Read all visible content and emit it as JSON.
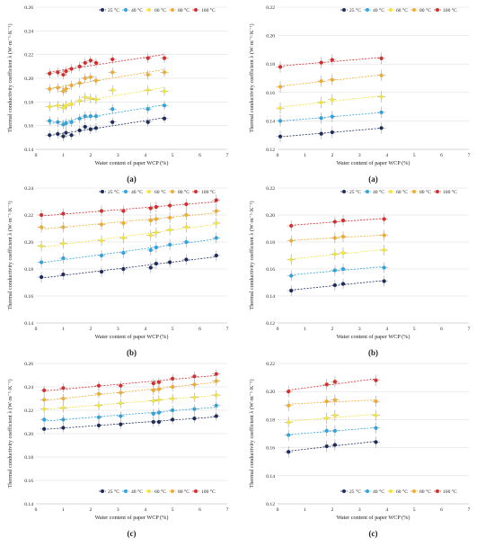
{
  "chart_data": [
    {
      "type": "scatter",
      "panel_label": "(a)",
      "xlabel": "Water content of paper WCP (%)",
      "ylabel": "Thermal conductivity coefficient λ (W·m⁻¹·K⁻¹)",
      "xlim": [
        0,
        7
      ],
      "ylim": [
        0.14,
        0.26
      ],
      "xticks": [
        "0",
        "1",
        "2",
        "3",
        "4",
        "5",
        "6",
        "7"
      ],
      "yticks": [
        "0.14",
        "0.16",
        "0.18",
        "0.20",
        "0.22",
        "0.24",
        "0.26"
      ],
      "legend_position": "top",
      "trendlines": true,
      "series": [
        {
          "name": "25 °C",
          "color": "#1f2d5c",
          "x": [
            0.5,
            0.8,
            1.0,
            1.1,
            1.3,
            1.6,
            1.8,
            2.0,
            2.2,
            2.8,
            4.1,
            4.7
          ],
          "y": [
            0.152,
            0.153,
            0.151,
            0.154,
            0.152,
            0.156,
            0.159,
            0.157,
            0.158,
            0.163,
            0.163,
            0.166
          ]
        },
        {
          "name": "40 °C",
          "color": "#2fa3dd",
          "x": [
            0.5,
            0.8,
            1.0,
            1.1,
            1.3,
            1.6,
            1.8,
            2.0,
            2.2,
            2.8,
            4.1,
            4.7
          ],
          "y": [
            0.164,
            0.163,
            0.161,
            0.162,
            0.163,
            0.166,
            0.168,
            0.168,
            0.168,
            0.174,
            0.174,
            0.177
          ]
        },
        {
          "name": "60 °C",
          "color": "#f2e33a",
          "x": [
            0.5,
            0.8,
            1.0,
            1.1,
            1.3,
            1.6,
            1.8,
            2.0,
            2.2,
            2.8,
            4.1,
            4.7
          ],
          "y": [
            0.176,
            0.177,
            0.175,
            0.177,
            0.178,
            0.181,
            0.184,
            0.183,
            0.182,
            0.19,
            0.19,
            0.189
          ]
        },
        {
          "name": "80 °C",
          "color": "#f0ad2d",
          "x": [
            0.5,
            0.8,
            1.0,
            1.1,
            1.3,
            1.6,
            1.8,
            2.0,
            2.2,
            2.8,
            4.1,
            4.7
          ],
          "y": [
            0.191,
            0.192,
            0.189,
            0.191,
            0.194,
            0.196,
            0.2,
            0.201,
            0.198,
            0.205,
            0.203,
            0.205
          ]
        },
        {
          "name": "100 °C",
          "color": "#d62d2d",
          "x": [
            0.5,
            0.8,
            1.0,
            1.1,
            1.3,
            1.6,
            1.8,
            2.0,
            2.2,
            2.8,
            4.1,
            4.7
          ],
          "y": [
            0.204,
            0.205,
            0.203,
            0.206,
            0.208,
            0.21,
            0.213,
            0.215,
            0.213,
            0.216,
            0.217,
            0.217
          ]
        }
      ]
    },
    {
      "type": "scatter",
      "panel_label": "(a)",
      "xlabel": "Water content of paper WCP (%)",
      "ylabel": "Thermal conductivity coefficient λ (W·m⁻¹·K⁻¹)",
      "xlim": [
        0,
        7
      ],
      "ylim": [
        0.12,
        0.22
      ],
      "xticks": [
        "0",
        "1",
        "2",
        "3",
        "4",
        "5",
        "6",
        "7"
      ],
      "yticks": [
        "0.12",
        "0.14",
        "0.16",
        "0.18",
        "0.20",
        "0.22"
      ],
      "legend_position": "top",
      "trendlines": true,
      "series": [
        {
          "name": "25 °C",
          "color": "#1f2d5c",
          "x": [
            0.1,
            1.6,
            2.0,
            3.8
          ],
          "y": [
            0.129,
            0.131,
            0.132,
            0.135
          ]
        },
        {
          "name": "40 °C",
          "color": "#2fa3dd",
          "x": [
            0.1,
            1.6,
            2.0,
            3.8
          ],
          "y": [
            0.14,
            0.142,
            0.143,
            0.146
          ]
        },
        {
          "name": "60 °C",
          "color": "#f2e33a",
          "x": [
            0.1,
            1.6,
            2.0,
            3.8
          ],
          "y": [
            0.149,
            0.153,
            0.155,
            0.157
          ]
        },
        {
          "name": "80 °C",
          "color": "#f0ad2d",
          "x": [
            0.1,
            1.6,
            2.0,
            3.8
          ],
          "y": [
            0.164,
            0.168,
            0.169,
            0.172
          ]
        },
        {
          "name": "100 °C",
          "color": "#d62d2d",
          "x": [
            0.1,
            1.6,
            2.0,
            3.8
          ],
          "y": [
            0.178,
            0.181,
            0.183,
            0.184
          ]
        }
      ]
    },
    {
      "type": "scatter",
      "panel_label": "(b)",
      "xlabel": "Water content of paper WCP (%)",
      "ylabel": "Thermal conductivity coefficient λ (W·m⁻¹·K⁻¹)",
      "xlim": [
        0,
        7
      ],
      "ylim": [
        0.14,
        0.24
      ],
      "xticks": [
        "0",
        "1",
        "2",
        "3",
        "4",
        "5",
        "6",
        "7"
      ],
      "yticks": [
        "0.14",
        "0.16",
        "0.18",
        "0.20",
        "0.22",
        "0.24"
      ],
      "legend_position": "top",
      "trendlines": true,
      "series": [
        {
          "name": "25 °C",
          "color": "#1f2d5c",
          "x": [
            0.2,
            1.0,
            2.4,
            3.2,
            4.2,
            4.4,
            4.9,
            5.5,
            6.6
          ],
          "y": [
            0.174,
            0.176,
            0.178,
            0.18,
            0.181,
            0.184,
            0.185,
            0.187,
            0.19
          ]
        },
        {
          "name": "40 °C",
          "color": "#2fa3dd",
          "x": [
            0.2,
            1.0,
            2.4,
            3.2,
            4.2,
            4.4,
            4.9,
            5.5,
            6.6
          ],
          "y": [
            0.185,
            0.188,
            0.19,
            0.192,
            0.194,
            0.196,
            0.198,
            0.2,
            0.203
          ]
        },
        {
          "name": "60 °C",
          "color": "#f2e33a",
          "x": [
            0.2,
            1.0,
            2.4,
            3.2,
            4.2,
            4.4,
            4.9,
            5.5,
            6.6
          ],
          "y": [
            0.197,
            0.199,
            0.201,
            0.203,
            0.205,
            0.207,
            0.209,
            0.211,
            0.214
          ]
        },
        {
          "name": "80 °C",
          "color": "#f0ad2d",
          "x": [
            0.2,
            1.0,
            2.4,
            3.2,
            4.2,
            4.4,
            4.9,
            5.5,
            6.6
          ],
          "y": [
            0.211,
            0.211,
            0.213,
            0.214,
            0.216,
            0.217,
            0.218,
            0.22,
            0.223
          ]
        },
        {
          "name": "100 °C",
          "color": "#d62d2d",
          "x": [
            0.2,
            1.0,
            2.4,
            3.2,
            4.2,
            4.4,
            4.9,
            5.5,
            6.6
          ],
          "y": [
            0.22,
            0.221,
            0.223,
            0.223,
            0.225,
            0.226,
            0.227,
            0.228,
            0.231
          ]
        }
      ]
    },
    {
      "type": "scatter",
      "panel_label": "(b)",
      "xlabel": "Water content of paper WCP (%)",
      "ylabel": "Thermal conductivity coefficient λ (W·m⁻¹·K⁻¹)",
      "xlim": [
        0,
        7
      ],
      "ylim": [
        0.12,
        0.22
      ],
      "xticks": [
        "0",
        "1",
        "2",
        "3",
        "4",
        "5",
        "6",
        "7"
      ],
      "yticks": [
        "0.12",
        "0.14",
        "0.16",
        "0.18",
        "0.20",
        "0.22"
      ],
      "legend_position": "top",
      "trendlines": true,
      "series": [
        {
          "name": "25 °C",
          "color": "#1f2d5c",
          "x": [
            0.5,
            2.1,
            2.4,
            3.9
          ],
          "y": [
            0.144,
            0.148,
            0.149,
            0.151
          ]
        },
        {
          "name": "40 °C",
          "color": "#2fa3dd",
          "x": [
            0.5,
            2.1,
            2.4,
            3.9
          ],
          "y": [
            0.155,
            0.159,
            0.16,
            0.161
          ]
        },
        {
          "name": "60 °C",
          "color": "#f2e33a",
          "x": [
            0.5,
            2.1,
            2.4,
            3.9
          ],
          "y": [
            0.167,
            0.171,
            0.172,
            0.174
          ]
        },
        {
          "name": "80 °C",
          "color": "#f0ad2d",
          "x": [
            0.5,
            2.1,
            2.4,
            3.9
          ],
          "y": [
            0.181,
            0.183,
            0.184,
            0.185
          ]
        },
        {
          "name": "100 °C",
          "color": "#d62d2d",
          "x": [
            0.5,
            2.1,
            2.4,
            3.9
          ],
          "y": [
            0.192,
            0.195,
            0.196,
            0.197
          ]
        }
      ]
    },
    {
      "type": "scatter",
      "panel_label": "(c)",
      "xlabel": "Water content of paper WCP (%)",
      "ylabel": "Thermal conductivity coefficient λ (W·m⁻¹·K⁻¹)",
      "xlim": [
        0,
        7
      ],
      "ylim": [
        0.14,
        0.26
      ],
      "xticks": [
        "0",
        "1",
        "2",
        "3",
        "4",
        "5",
        "6",
        "7"
      ],
      "yticks": [
        "0.14",
        "0.16",
        "0.18",
        "0.20",
        "0.22",
        "0.24",
        "0.26"
      ],
      "legend_position": "bottom-right",
      "trendlines": true,
      "series": [
        {
          "name": "25 °C",
          "color": "#1f2d5c",
          "x": [
            0.3,
            1.0,
            2.3,
            3.1,
            4.3,
            4.5,
            5.0,
            5.8,
            6.6
          ],
          "y": [
            0.204,
            0.205,
            0.207,
            0.208,
            0.21,
            0.21,
            0.212,
            0.213,
            0.215
          ]
        },
        {
          "name": "40 °C",
          "color": "#2fa3dd",
          "x": [
            0.3,
            1.0,
            2.3,
            3.1,
            4.3,
            4.5,
            5.0,
            5.8,
            6.6
          ],
          "y": [
            0.212,
            0.212,
            0.214,
            0.215,
            0.217,
            0.218,
            0.22,
            0.221,
            0.224
          ]
        },
        {
          "name": "60 °C",
          "color": "#f2e33a",
          "x": [
            0.3,
            1.0,
            2.3,
            3.1,
            4.3,
            4.5,
            5.0,
            5.8,
            6.6
          ],
          "y": [
            0.221,
            0.222,
            0.224,
            0.226,
            0.228,
            0.229,
            0.23,
            0.231,
            0.233
          ]
        },
        {
          "name": "80 °C",
          "color": "#f0ad2d",
          "x": [
            0.3,
            1.0,
            2.3,
            3.1,
            4.3,
            4.5,
            5.0,
            5.8,
            6.6
          ],
          "y": [
            0.229,
            0.23,
            0.234,
            0.235,
            0.237,
            0.238,
            0.24,
            0.242,
            0.245
          ]
        },
        {
          "name": "100 °C",
          "color": "#d62d2d",
          "x": [
            0.3,
            1.0,
            2.3,
            3.1,
            4.3,
            4.5,
            5.0,
            5.8,
            6.6
          ],
          "y": [
            0.237,
            0.239,
            0.241,
            0.241,
            0.243,
            0.244,
            0.247,
            0.249,
            0.251
          ]
        }
      ]
    },
    {
      "type": "scatter",
      "panel_label": "(c)",
      "xlabel": "Water content of paper WCP (%)",
      "ylabel": "Thermal conductivity coefficient λ (W·m⁻¹·K⁻¹)",
      "xlim": [
        0,
        7
      ],
      "ylim": [
        0.12,
        0.22
      ],
      "xticks": [
        "0",
        "1",
        "2",
        "3",
        "4",
        "5",
        "6",
        "7"
      ],
      "yticks": [
        "0.12",
        "0.14",
        "0.16",
        "0.18",
        "0.20",
        "0.22"
      ],
      "legend_position": "bottom-right",
      "trendlines": true,
      "series": [
        {
          "name": "25 °C",
          "color": "#1f2d5c",
          "x": [
            0.4,
            1.8,
            2.1,
            3.6
          ],
          "y": [
            0.157,
            0.161,
            0.162,
            0.164
          ]
        },
        {
          "name": "40 °C",
          "color": "#2fa3dd",
          "x": [
            0.4,
            1.8,
            2.1,
            3.6
          ],
          "y": [
            0.169,
            0.172,
            0.172,
            0.174
          ]
        },
        {
          "name": "60 °C",
          "color": "#f2e33a",
          "x": [
            0.4,
            1.8,
            2.1,
            3.6
          ],
          "y": [
            0.178,
            0.181,
            0.183,
            0.183
          ]
        },
        {
          "name": "80 °C",
          "color": "#f0ad2d",
          "x": [
            0.4,
            1.8,
            2.1,
            3.6
          ],
          "y": [
            0.19,
            0.193,
            0.194,
            0.193
          ]
        },
        {
          "name": "100 °C",
          "color": "#d62d2d",
          "x": [
            0.4,
            1.8,
            2.1,
            3.6
          ],
          "y": [
            0.2,
            0.205,
            0.207,
            0.208
          ]
        }
      ]
    }
  ]
}
